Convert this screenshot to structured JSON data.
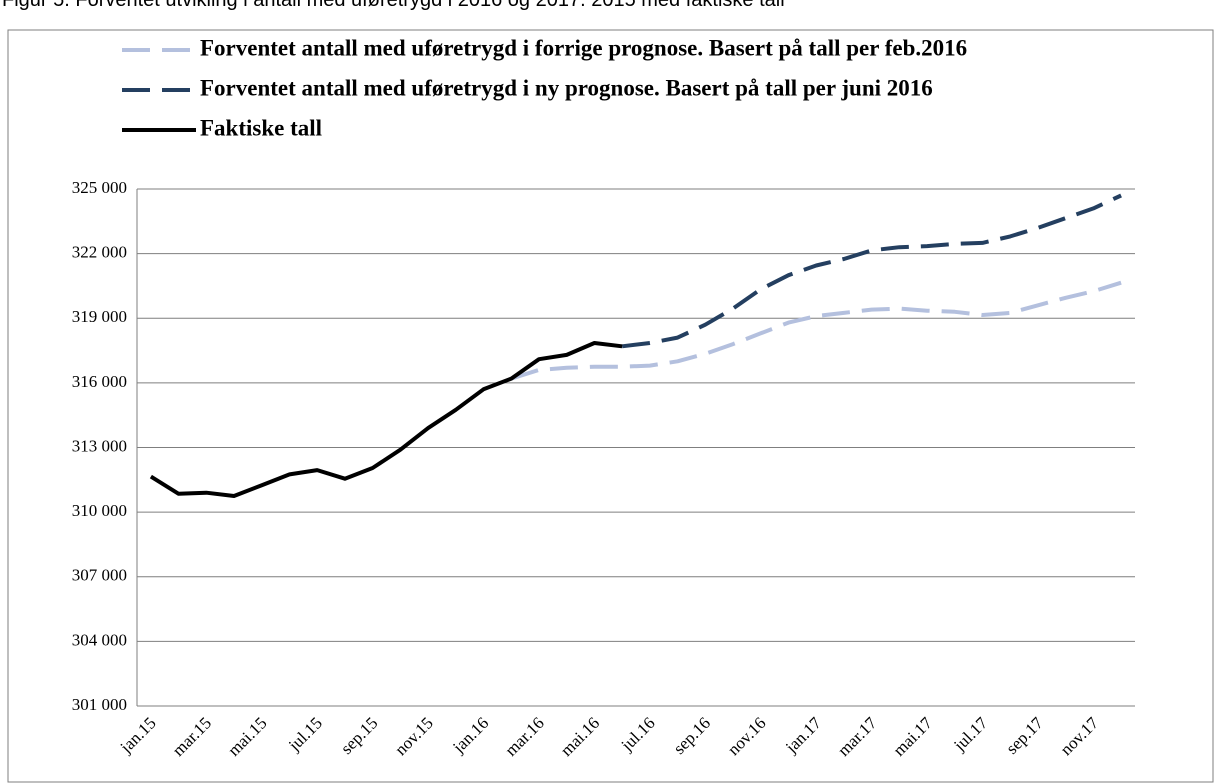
{
  "chart_data": {
    "type": "line",
    "title": "Figur 5. Forventet utvikling i antall med uføretrygd i 2016 og 2017. 2015 med faktiske tall",
    "categories": [
      "jan.15",
      null,
      "mar.15",
      null,
      "mai.15",
      null,
      "jul.15",
      null,
      "sep.15",
      null,
      "nov.15",
      null,
      "jan.16",
      null,
      "mar.16",
      null,
      "mai.16",
      null,
      "jul.16",
      null,
      "sep.16",
      null,
      "nov.16",
      null,
      "jan.17",
      null,
      "mar.17",
      null,
      "mai.17",
      null,
      "jul.17",
      null,
      "sep.17",
      null,
      "nov.17",
      null
    ],
    "series": [
      {
        "name": "Forventet antall med uføretrygd i forrige prognose. Basert på tall per feb.2016",
        "color": "#b4c0de",
        "dash": true,
        "values": [
          null,
          null,
          null,
          null,
          null,
          null,
          null,
          null,
          null,
          null,
          null,
          null,
          null,
          316200,
          316600,
          316700,
          316750,
          316750,
          316800,
          317000,
          317350,
          317800,
          318300,
          318800,
          319100,
          319250,
          319400,
          319450,
          319350,
          319300,
          319150,
          319250,
          319600,
          319950,
          320250,
          320650
        ]
      },
      {
        "name": "Forventet antall med uføretrygd i ny prognose. Basert på tall per juni 2016",
        "color": "#243f60",
        "dash": true,
        "values": [
          null,
          null,
          null,
          null,
          null,
          null,
          null,
          null,
          null,
          null,
          null,
          null,
          null,
          null,
          null,
          null,
          null,
          317700,
          317850,
          318100,
          318700,
          319450,
          320350,
          321000,
          321450,
          321750,
          322150,
          322300,
          322350,
          322450,
          322500,
          322800,
          323200,
          323650,
          324100,
          324700
        ]
      },
      {
        "name": "Faktiske tall",
        "color": "#000000",
        "dash": false,
        "values": [
          311650,
          310850,
          310900,
          310750,
          311250,
          311750,
          311950,
          311550,
          312050,
          312900,
          313900,
          314750,
          315700,
          316200,
          317100,
          317300,
          317850,
          317700,
          null,
          null,
          null,
          null,
          null,
          null,
          null,
          null,
          null,
          null,
          null,
          null,
          null,
          null,
          null,
          null,
          null,
          null
        ]
      }
    ],
    "ylim": [
      301000,
      325000
    ],
    "yticks": [
      {
        "value": 301000,
        "label": "301 000"
      },
      {
        "value": 304000,
        "label": "304 000"
      },
      {
        "value": 307000,
        "label": "307 000"
      },
      {
        "value": 310000,
        "label": "310 000"
      },
      {
        "value": 313000,
        "label": "313 000"
      },
      {
        "value": 316000,
        "label": "316 000"
      },
      {
        "value": 319000,
        "label": "319 000"
      },
      {
        "value": 322000,
        "label": "322 000"
      },
      {
        "value": 325000,
        "label": "325 000"
      }
    ],
    "grid": true
  }
}
